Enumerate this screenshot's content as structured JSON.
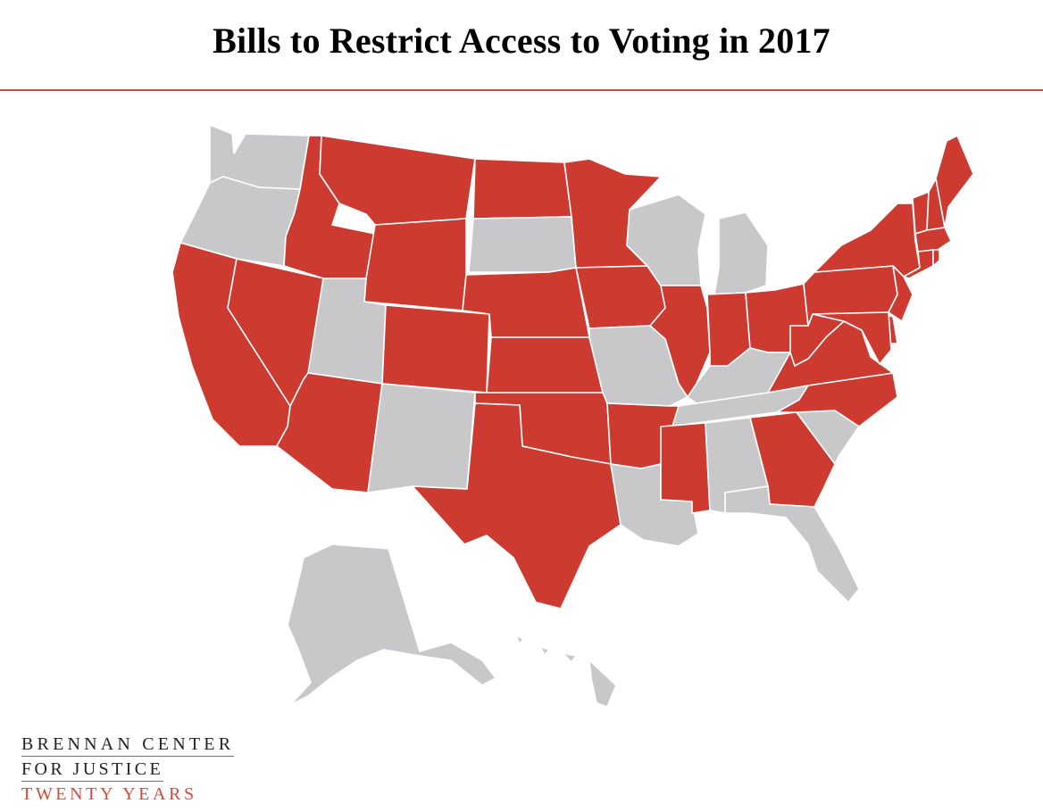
{
  "title": "Bills to Restrict Access to Voting in 2017",
  "colors": {
    "restrict": "#cc3a30",
    "none": "#c8c8ca",
    "rule": "#d44a38"
  },
  "logo": {
    "line1": "BRENNAN CENTER",
    "line2": "FOR JUSTICE",
    "line3": "TWENTY YEARS"
  },
  "states_with_restrictive_bills": [
    "ID",
    "MT",
    "ND",
    "MN",
    "WY",
    "NE",
    "IA",
    "IL",
    "IN",
    "OH",
    "PA",
    "NY",
    "VT",
    "NH",
    "ME",
    "MA",
    "CT",
    "RI",
    "NJ",
    "DE",
    "MD",
    "WV",
    "VA",
    "NC",
    "CA",
    "NV",
    "CO",
    "KS",
    "OK",
    "AR",
    "MS",
    "GA",
    "AZ",
    "TX"
  ],
  "states_without": [
    "WA",
    "OR",
    "UT",
    "SD",
    "WI",
    "MI",
    "MO",
    "KY",
    "TN",
    "NM",
    "LA",
    "AL",
    "SC",
    "FL",
    "AK",
    "HI"
  ]
}
